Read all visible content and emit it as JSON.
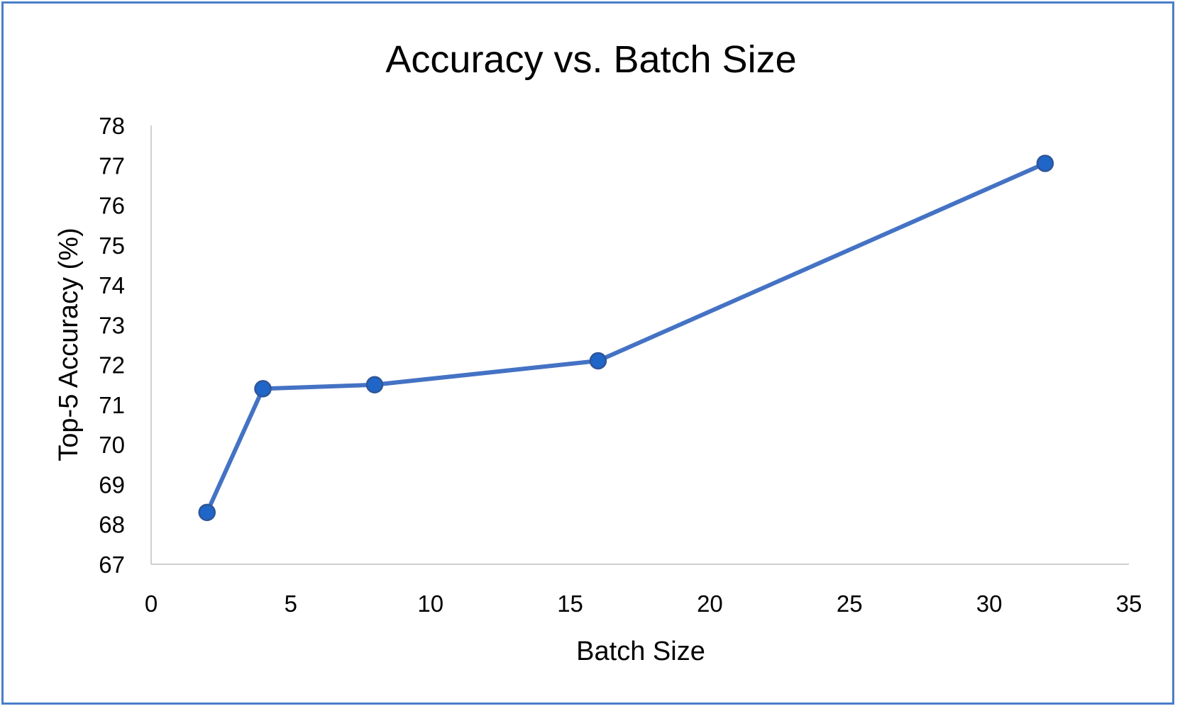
{
  "chart_data": {
    "type": "line",
    "title": "Accuracy vs. Batch Size",
    "xlabel": "Batch Size",
    "ylabel": "Top-5 Accuracy (%)",
    "xlim": [
      0,
      35
    ],
    "ylim": [
      67,
      78
    ],
    "xticks": [
      0,
      5,
      10,
      15,
      20,
      25,
      30,
      35
    ],
    "yticks": [
      67,
      68,
      69,
      70,
      71,
      72,
      73,
      74,
      75,
      76,
      77,
      78
    ],
    "grid": false,
    "legend": "none",
    "series": [
      {
        "color": "#4472c4",
        "marker_color": "#1f66c8",
        "points": [
          {
            "x": 2,
            "y": 68.3
          },
          {
            "x": 4,
            "y": 71.4
          },
          {
            "x": 8,
            "y": 71.5
          },
          {
            "x": 16,
            "y": 72.1
          },
          {
            "x": 32,
            "y": 77.05
          }
        ]
      }
    ]
  }
}
